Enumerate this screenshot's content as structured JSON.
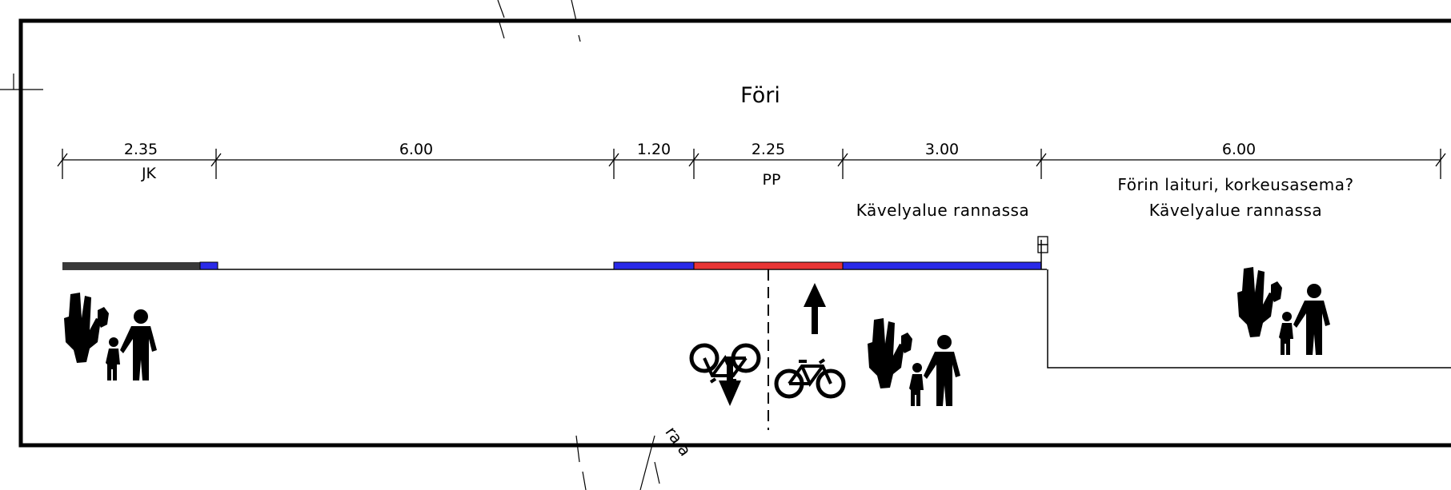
{
  "title": "Föri",
  "dimensions": [
    {
      "value": "2.35",
      "sublabel": "JK"
    },
    {
      "value": "6.00",
      "sublabel": ""
    },
    {
      "value": "1.20",
      "sublabel": ""
    },
    {
      "value": "2.25",
      "sublabel": "PP"
    },
    {
      "value": "3.00",
      "sublabel": ""
    },
    {
      "value": "6.00",
      "sublabel": ""
    }
  ],
  "notes": {
    "shore_walk_left": "Kävelyalue rannassa",
    "ferry_platform": "Förin laituri, korkeusasema?",
    "shore_walk_right": "Kävelyalue rannassa"
  },
  "stray_label": "ra a",
  "colors": {
    "frame": "#000000",
    "sidewalk_dark": "#3a3a3a",
    "edge_blue": "#2a2ae8",
    "bike_lane_red": "#e83535"
  },
  "icons": [
    "pedestrians-icon",
    "bicycle-icon",
    "arrow-up-icon",
    "arrow-down-icon"
  ]
}
